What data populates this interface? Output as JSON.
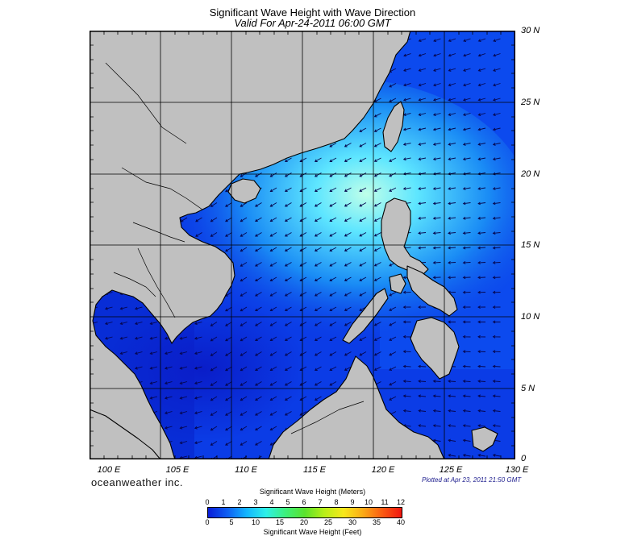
{
  "title": "Significant Wave Height with Wave Direction",
  "subtitle": "Valid For Apr-24-2011 06:00 GMT",
  "lat_labels": [
    "30 N",
    "25 N",
    "20 N",
    "15 N",
    "10 N",
    "5 N",
    "0"
  ],
  "lon_labels": [
    "100 E",
    "105 E",
    "110 E",
    "115 E",
    "120 E",
    "125 E",
    "130 E"
  ],
  "brand": "oceanweather inc.",
  "plotted": "Plotted at Apr 23, 2011 21:50 GMT",
  "colorbar": {
    "title_meters": "Significant Wave Height (Meters)",
    "title_feet": "Significant Wave Height (Feet)",
    "meter_ticks": [
      "0",
      "1",
      "2",
      "3",
      "4",
      "5",
      "6",
      "7",
      "8",
      "9",
      "10",
      "11",
      "12"
    ],
    "feet_ticks": [
      "0",
      "5",
      "10",
      "15",
      "20",
      "25",
      "30",
      "35",
      "40"
    ],
    "colors": [
      "#0a1dd8",
      "#0f5ff2",
      "#13b6ff",
      "#2df0e8",
      "#3cf07c",
      "#5ae22c",
      "#b7ef18",
      "#f7e81a",
      "#fbab16",
      "#fb5b12",
      "#f0160f"
    ]
  },
  "colors": {
    "land": "#c0c0c0",
    "sea_base": "#0b3ce6",
    "sea_high": "#86f7ff",
    "arrow": "#06064e"
  }
}
